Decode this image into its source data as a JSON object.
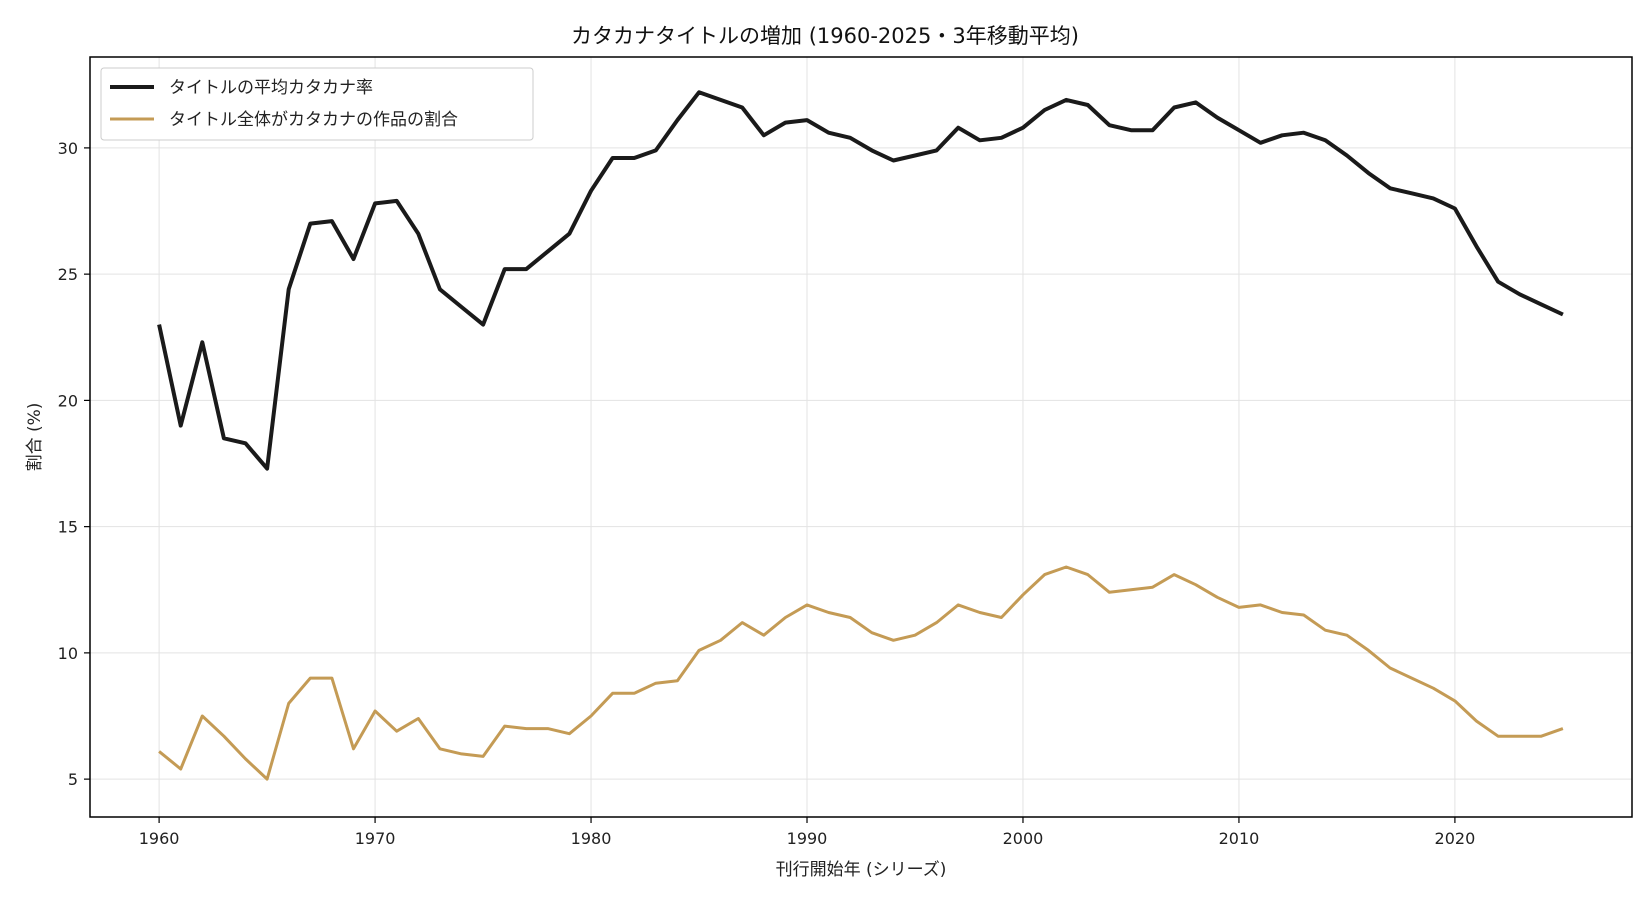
{
  "chart_data": {
    "type": "line",
    "title": "カタカナタイトルの増加 (1960-2025・3年移動平均)",
    "xlabel": "刊行開始年 (シリーズ)",
    "ylabel": "割合 (%)",
    "xlim": [
      1956.8,
      2028.2
    ],
    "ylim": [
      3.5,
      33.6
    ],
    "xticks": [
      1960,
      1970,
      1980,
      1990,
      2000,
      2010,
      2020
    ],
    "yticks": [
      5,
      10,
      15,
      20,
      25,
      30
    ],
    "grid": true,
    "legend_position": "top-left",
    "x": [
      1960,
      1961,
      1962,
      1963,
      1964,
      1965,
      1966,
      1967,
      1968,
      1969,
      1970,
      1971,
      1972,
      1973,
      1974,
      1975,
      1976,
      1977,
      1978,
      1979,
      1980,
      1981,
      1982,
      1983,
      1984,
      1985,
      1986,
      1987,
      1988,
      1989,
      1990,
      1991,
      1992,
      1993,
      1994,
      1995,
      1996,
      1997,
      1998,
      1999,
      2000,
      2001,
      2002,
      2003,
      2004,
      2005,
      2006,
      2007,
      2008,
      2009,
      2010,
      2011,
      2012,
      2013,
      2014,
      2015,
      2016,
      2017,
      2018,
      2019,
      2020,
      2021,
      2022,
      2023,
      2024,
      2025
    ],
    "series": [
      {
        "name": "タイトルの平均カタカナ率",
        "color": "#1a1a1a",
        "width": 4,
        "values": [
          23.0,
          19.0,
          22.3,
          18.5,
          18.3,
          17.3,
          24.4,
          27.0,
          27.1,
          25.6,
          27.8,
          27.9,
          26.6,
          24.4,
          23.7,
          23.0,
          25.2,
          25.2,
          25.9,
          26.6,
          28.3,
          29.6,
          29.6,
          29.9,
          31.1,
          32.2,
          31.9,
          31.6,
          30.5,
          31.0,
          31.1,
          30.6,
          30.4,
          29.9,
          29.5,
          29.7,
          29.9,
          30.8,
          30.3,
          30.4,
          30.8,
          31.5,
          31.9,
          31.7,
          30.9,
          30.7,
          30.7,
          31.6,
          31.8,
          31.2,
          30.7,
          30.2,
          30.5,
          30.6,
          30.3,
          29.7,
          29.0,
          28.4,
          28.2,
          28.0,
          27.6,
          26.1,
          24.7,
          24.2,
          23.8,
          23.4
        ]
      },
      {
        "name": "タイトル全体がカタカナの作品の割合",
        "color": "#c49b55",
        "width": 3,
        "values": [
          6.1,
          5.4,
          7.5,
          6.7,
          5.8,
          5.0,
          8.0,
          9.0,
          9.0,
          6.2,
          7.7,
          6.9,
          7.4,
          6.2,
          6.0,
          5.9,
          7.1,
          7.0,
          7.0,
          6.8,
          7.5,
          8.4,
          8.4,
          8.8,
          8.9,
          10.1,
          10.5,
          11.2,
          10.7,
          11.4,
          11.9,
          11.6,
          11.4,
          10.8,
          10.5,
          10.7,
          11.2,
          11.9,
          11.6,
          11.4,
          12.3,
          13.1,
          13.4,
          13.1,
          12.4,
          12.5,
          12.6,
          13.1,
          12.7,
          12.2,
          11.8,
          11.9,
          11.6,
          11.5,
          10.9,
          10.7,
          10.1,
          9.4,
          9.0,
          8.6,
          8.1,
          7.3,
          6.7,
          6.7,
          6.7,
          7.0
        ]
      }
    ]
  }
}
